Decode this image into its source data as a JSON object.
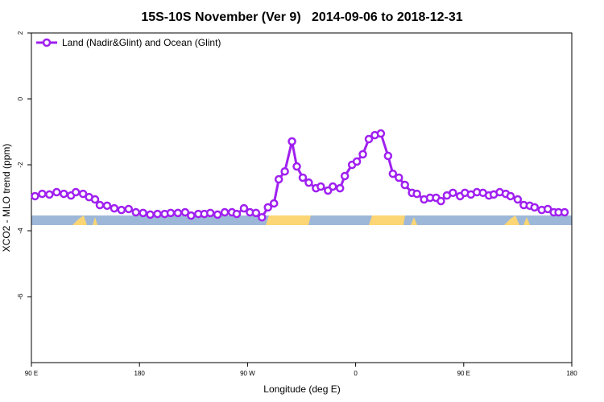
{
  "chart_data": {
    "type": "line",
    "title": "15S-10S November (Ver 9)   2014-09-06 to 2018-12-31",
    "x_label": "Longitude (deg E)",
    "y_label": "XCO2 - MLO trend (ppm)",
    "xlim": [
      90,
      540
    ],
    "xticks": [
      {
        "value": 90,
        "label": "90 E"
      },
      {
        "value": 180,
        "label": "180"
      },
      {
        "value": 270,
        "label": "90 W"
      },
      {
        "value": 360,
        "label": "0"
      },
      {
        "value": 450,
        "label": "90 E"
      },
      {
        "value": 540,
        "label": "180"
      }
    ],
    "ylim": [
      -8,
      2
    ],
    "yticks": [
      2,
      0,
      -2,
      -4,
      -6
    ],
    "legend": "top-left",
    "x": [
      93,
      99,
      105,
      111,
      117,
      123,
      127,
      133,
      138,
      143,
      147,
      153,
      159,
      165,
      171,
      177,
      183,
      189,
      195,
      201,
      206,
      212,
      218,
      223,
      229,
      234,
      239,
      245,
      251,
      257,
      261,
      267,
      272,
      277,
      282,
      287,
      292,
      296,
      301,
      307,
      311,
      316,
      321,
      327,
      331,
      337,
      341,
      347,
      351,
      357,
      361,
      366,
      371,
      376,
      381,
      387,
      391,
      396,
      401,
      407,
      411,
      417,
      422,
      427,
      431,
      436,
      441,
      447,
      451,
      456,
      461,
      466,
      471,
      475,
      480,
      485,
      489,
      495,
      500,
      505,
      509,
      515,
      520,
      525,
      529,
      534
    ],
    "series": [
      {
        "name": "Land (Nadir&Glint) and Ocean (Glint)",
        "color": "#a020f0",
        "values": [
          -2.95,
          -2.88,
          -2.9,
          -2.83,
          -2.88,
          -2.93,
          -2.83,
          -2.88,
          -2.98,
          -3.05,
          -3.22,
          -3.24,
          -3.32,
          -3.37,
          -3.34,
          -3.44,
          -3.46,
          -3.51,
          -3.49,
          -3.49,
          -3.46,
          -3.46,
          -3.44,
          -3.54,
          -3.49,
          -3.49,
          -3.46,
          -3.51,
          -3.44,
          -3.44,
          -3.49,
          -3.32,
          -3.44,
          -3.46,
          -3.59,
          -3.29,
          -3.17,
          -2.44,
          -2.2,
          -1.29,
          -2.05,
          -2.39,
          -2.54,
          -2.71,
          -2.66,
          -2.78,
          -2.66,
          -2.71,
          -2.34,
          -2.0,
          -1.9,
          -1.68,
          -1.22,
          -1.1,
          -1.05,
          -1.73,
          -2.27,
          -2.39,
          -2.61,
          -2.85,
          -2.88,
          -3.05,
          -3.0,
          -3.0,
          -3.1,
          -2.93,
          -2.85,
          -2.95,
          -2.85,
          -2.9,
          -2.83,
          -2.85,
          -2.93,
          -2.9,
          -2.83,
          -2.88,
          -2.95,
          -3.05,
          -3.22,
          -3.24,
          -3.29,
          -3.37,
          -3.34,
          -3.44,
          -3.44,
          -3.44
        ]
      }
    ]
  }
}
